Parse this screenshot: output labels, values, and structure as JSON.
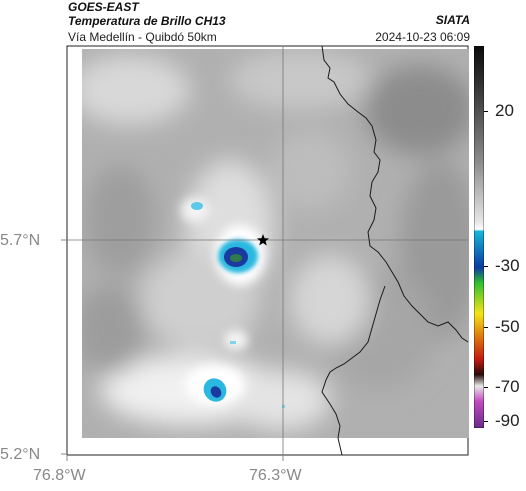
{
  "header": {
    "satellite": "GOES-EAST",
    "product": "Temperatura de Brillo CH13",
    "route": "Vía Medellín - Quibdó 50km",
    "organization": "SIATA",
    "timestamp": "2024-10-23 06:09"
  },
  "axes": {
    "lat_labels": [
      "5.7°N",
      "5.2°N"
    ],
    "lon_labels": [
      "76.8°W",
      "76.3°W"
    ]
  },
  "colorbar": {
    "tick_labels": [
      "20",
      "-30",
      "-50",
      "-70",
      "-90"
    ],
    "colors": {
      "warm_top": "#0a0a0a",
      "cold_start": "#17b6d8",
      "mid_blue": "#0b3aa3",
      "green": "#2fbf2f",
      "yellow": "#f2e41a",
      "red": "#c21a12",
      "magenta": "#c24bbf"
    }
  },
  "map": {
    "marker": "star-icon",
    "colors": {
      "cloud_light": "#f2f2f2",
      "cloud_dark": "#9a9a9a",
      "storm_cyan": "#2ab8e0",
      "storm_core": "#1a3aa0",
      "storm_green": "#2f7a4a",
      "border_line": "#1a1a1a",
      "grid_line": "#777777"
    }
  }
}
